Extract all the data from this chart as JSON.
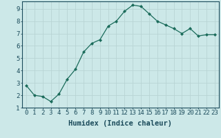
{
  "x": [
    0,
    1,
    2,
    3,
    4,
    5,
    6,
    7,
    8,
    9,
    10,
    11,
    12,
    13,
    14,
    15,
    16,
    17,
    18,
    19,
    20,
    21,
    22,
    23
  ],
  "y": [
    2.8,
    2.0,
    1.9,
    1.5,
    2.1,
    3.3,
    4.1,
    5.5,
    6.2,
    6.5,
    7.6,
    8.0,
    8.8,
    9.3,
    9.2,
    8.6,
    8.0,
    7.7,
    7.4,
    7.0,
    7.4,
    6.8,
    6.9,
    6.9
  ],
  "line_color": "#1a6b5a",
  "marker": "D",
  "marker_size": 2.0,
  "bg_color": "#cce8e8",
  "grid_color_major": "#b8d4d4",
  "grid_color_minor": "#b8d4d4",
  "xlabel": "Humidex (Indice chaleur)",
  "ylim": [
    1,
    9.6
  ],
  "xlim": [
    -0.5,
    23.5
  ],
  "yticks": [
    1,
    2,
    3,
    4,
    5,
    6,
    7,
    8,
    9
  ],
  "xticks": [
    0,
    1,
    2,
    3,
    4,
    5,
    6,
    7,
    8,
    9,
    10,
    11,
    12,
    13,
    14,
    15,
    16,
    17,
    18,
    19,
    20,
    21,
    22,
    23
  ],
  "xlabel_fontsize": 7.5,
  "tick_fontsize": 6.5,
  "tick_color": "#1a4a5a",
  "spine_color": "#1a4a5a",
  "linewidth": 0.9
}
